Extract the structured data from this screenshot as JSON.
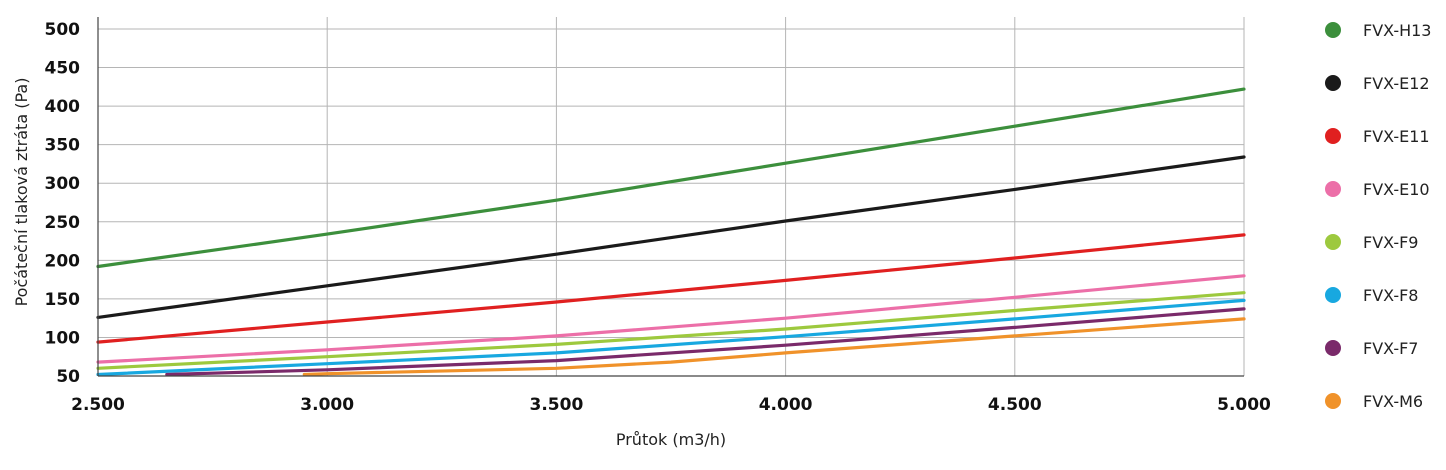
{
  "chart_data": {
    "type": "line",
    "xlabel": "Průtok (m3/h)",
    "ylabel": "Počáteční tlaková ztráta (Pa)",
    "xlim": [
      2500,
      5000
    ],
    "ylim": [
      50,
      500
    ],
    "x_ticks": [
      2500,
      3000,
      3500,
      4000,
      4500,
      5000
    ],
    "x_tick_labels": [
      "2.500",
      "3.000",
      "3.500",
      "4.000",
      "4.500",
      "5.000"
    ],
    "y_ticks": [
      50,
      100,
      150,
      200,
      250,
      300,
      350,
      400,
      450,
      500
    ],
    "y_tick_labels": [
      "50",
      "100",
      "150",
      "200",
      "250",
      "300",
      "350",
      "400",
      "450",
      "500"
    ],
    "grid": true,
    "legend_position": "right",
    "series": [
      {
        "name": "FVX-H13",
        "color": "#3c8f3c",
        "x": [
          2500,
          3000,
          3500,
          4000,
          4500,
          5000
        ],
        "y": [
          192,
          234,
          278,
          326,
          374,
          422
        ]
      },
      {
        "name": "FVX-E12",
        "color": "#1a1a1a",
        "x": [
          2500,
          3000,
          3500,
          4000,
          4500,
          5000
        ],
        "y": [
          126,
          167,
          208,
          251,
          292,
          334
        ]
      },
      {
        "name": "FVX-E11",
        "color": "#e02020",
        "x": [
          2500,
          3000,
          3500,
          4000,
          4500,
          5000
        ],
        "y": [
          94,
          120,
          146,
          174,
          203,
          233
        ]
      },
      {
        "name": "FVX-E10",
        "color": "#ec6fa8",
        "x": [
          2500,
          3000,
          3500,
          4000,
          4500,
          5000
        ],
        "y": [
          68,
          84,
          102,
          125,
          152,
          180
        ]
      },
      {
        "name": "FVX-F9",
        "color": "#9dc93e",
        "x": [
          2500,
          3000,
          3500,
          4000,
          4500,
          5000
        ],
        "y": [
          60,
          75,
          91,
          111,
          135,
          158
        ]
      },
      {
        "name": "FVX-F8",
        "color": "#18a8e0",
        "x": [
          2500,
          3000,
          3500,
          4000,
          4500,
          5000
        ],
        "y": [
          52,
          66,
          80,
          101,
          124,
          148
        ]
      },
      {
        "name": "FVX-F7",
        "color": "#7a2a6a",
        "x": [
          2650,
          3000,
          3500,
          4000,
          4500,
          5000
        ],
        "y": [
          52,
          58,
          70,
          90,
          113,
          137
        ]
      },
      {
        "name": "FVX-M6",
        "color": "#f0922a",
        "x": [
          2950,
          3000,
          3500,
          3750,
          4000,
          4500,
          5000
        ],
        "y": [
          52,
          53,
          60,
          68,
          80,
          102,
          124
        ]
      }
    ]
  }
}
